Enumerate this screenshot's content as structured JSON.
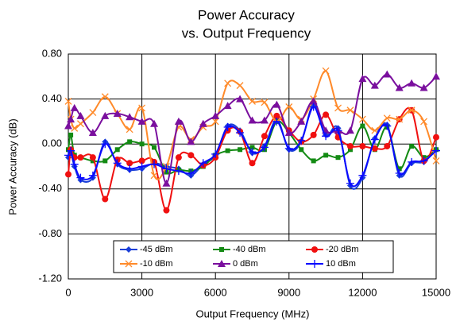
{
  "chart_data": {
    "type": "line",
    "title": "Power Accuracy",
    "subtitle": "vs. Output Frequency",
    "x_label": "Output Frequency (MHz)",
    "y_label": "Power Accuracy (dB)",
    "x": [
      0,
      100,
      250,
      500,
      1000,
      1500,
      2000,
      2500,
      3000,
      3500,
      4000,
      4500,
      5000,
      5500,
      6000,
      6500,
      7000,
      7500,
      8000,
      8500,
      9000,
      9500,
      10000,
      10500,
      11000,
      11500,
      12000,
      12500,
      13000,
      13500,
      14000,
      14500,
      15000
    ],
    "series": [
      {
        "name": "-45 dBm",
        "color": "#1a3fd8",
        "marker": "diamond",
        "values": [
          -0.12,
          -0.08,
          -0.2,
          -0.32,
          -0.3,
          0.02,
          -0.18,
          -0.23,
          -0.22,
          -0.17,
          -0.2,
          -0.22,
          -0.28,
          -0.18,
          -0.1,
          0.16,
          0.12,
          -0.08,
          -0.02,
          0.22,
          -0.05,
          0.02,
          0.35,
          0.08,
          0.14,
          -0.37,
          -0.3,
          0.05,
          0.17,
          -0.28,
          -0.17,
          -0.16,
          -0.05
        ]
      },
      {
        "name": "-40 dBm",
        "color": "#138a13",
        "marker": "square",
        "values": [
          -0.05,
          0.08,
          -0.1,
          -0.12,
          -0.15,
          -0.15,
          -0.05,
          0.02,
          0.0,
          -0.03,
          -0.25,
          -0.23,
          -0.24,
          -0.2,
          -0.1,
          -0.06,
          -0.05,
          -0.03,
          -0.05,
          0.2,
          0.1,
          -0.05,
          -0.15,
          -0.1,
          -0.12,
          -0.05,
          0.16,
          -0.05,
          0.15,
          -0.22,
          -0.02,
          -0.12,
          -0.05
        ]
      },
      {
        "name": "-20 dBm",
        "color": "#f01010",
        "marker": "circle",
        "values": [
          -0.27,
          -0.05,
          -0.12,
          -0.12,
          -0.12,
          -0.49,
          -0.14,
          -0.17,
          -0.15,
          -0.16,
          -0.59,
          -0.12,
          -0.1,
          -0.19,
          -0.12,
          0.12,
          0.11,
          -0.17,
          0.07,
          0.25,
          0.12,
          0.02,
          0.08,
          0.26,
          0.06,
          -0.02,
          -0.02,
          -0.04,
          -0.02,
          0.22,
          0.3,
          -0.15,
          0.06
        ]
      },
      {
        "name": "-10 dBm",
        "color": "#ff8a2a",
        "marker": "x",
        "values": [
          0.38,
          0.22,
          0.14,
          0.18,
          0.28,
          0.42,
          0.27,
          0.13,
          0.32,
          -0.28,
          -0.2,
          0.15,
          0.04,
          0.15,
          0.2,
          0.54,
          0.52,
          0.38,
          0.37,
          0.2,
          0.33,
          0.22,
          0.4,
          0.65,
          0.32,
          0.3,
          0.22,
          0.12,
          0.23,
          0.22,
          0.3,
          0.2,
          -0.15
        ]
      },
      {
        "name": "0 dBm",
        "color": "#7a0f9e",
        "marker": "triangle",
        "values": [
          0.16,
          0.22,
          0.32,
          0.25,
          0.1,
          0.25,
          0.27,
          0.24,
          0.2,
          0.18,
          -0.35,
          0.2,
          0.02,
          0.18,
          0.25,
          0.34,
          0.4,
          0.21,
          0.21,
          0.35,
          0.1,
          0.2,
          0.38,
          0.12,
          0.12,
          0.12,
          0.58,
          0.52,
          0.62,
          0.5,
          0.54,
          0.5,
          0.6
        ]
      },
      {
        "name": "10 dBm",
        "color": "#0a0aff",
        "marker": "plus",
        "values": [
          -0.1,
          -0.06,
          -0.18,
          -0.3,
          -0.28,
          0.0,
          -0.17,
          -0.22,
          -0.2,
          -0.18,
          -0.22,
          -0.24,
          -0.26,
          -0.17,
          -0.09,
          0.15,
          0.1,
          -0.07,
          -0.03,
          0.2,
          -0.04,
          0.03,
          0.33,
          0.07,
          0.12,
          -0.35,
          -0.28,
          0.04,
          0.16,
          -0.26,
          -0.16,
          -0.15,
          -0.06
        ]
      }
    ],
    "xlim": [
      0,
      15000
    ],
    "xticks": [
      0,
      3000,
      6000,
      9000,
      12000,
      15000
    ],
    "ylim": [
      -1.2,
      0.8
    ],
    "yticks": [
      {
        "value": -1.2,
        "label": "-1.20"
      },
      {
        "value": -0.8,
        "label": "-0.80"
      },
      {
        "value": -0.4,
        "label": "-0.40"
      },
      {
        "value": 0,
        "label": "0.00"
      },
      {
        "value": 0.4,
        "label": "0.40"
      },
      {
        "value": 0.8,
        "label": "0.80"
      }
    ],
    "grid": true,
    "legend": "bottom"
  }
}
